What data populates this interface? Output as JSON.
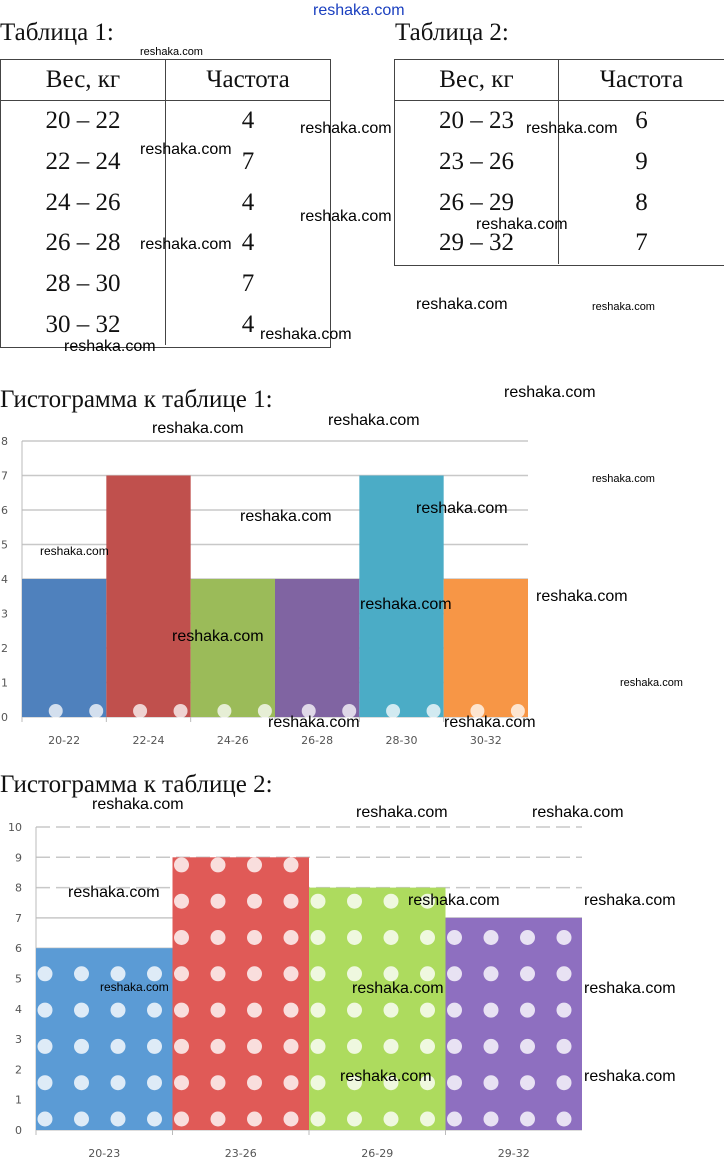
{
  "table1": {
    "title": "Таблица 1:",
    "headers": [
      "Вес, кг",
      "Частота"
    ],
    "rows": [
      [
        "20 – 22",
        "4"
      ],
      [
        "22 – 24",
        "7"
      ],
      [
        "24 – 26",
        "4"
      ],
      [
        "26 – 28",
        "4"
      ],
      [
        "28 – 30",
        "7"
      ],
      [
        "30 – 32",
        "4"
      ]
    ]
  },
  "table2": {
    "title": "Таблица 2:",
    "headers": [
      "Вес, кг",
      "Частота"
    ],
    "rows": [
      [
        "20 – 23",
        "6"
      ],
      [
        "23 – 26",
        "9"
      ],
      [
        "26 – 29",
        "8"
      ],
      [
        "29 – 32",
        "7"
      ]
    ]
  },
  "hist1": {
    "title": "Гистограмма к таблице 1:"
  },
  "hist2": {
    "title": "Гистограмма к таблице 2:"
  },
  "watermark": "reshaka.com",
  "chart_data": [
    {
      "type": "bar",
      "title": "Гистограмма к таблице 1:",
      "categories": [
        "20-22",
        "22-24",
        "24-26",
        "26-28",
        "28-30",
        "30-32"
      ],
      "values": [
        4,
        7,
        4,
        4,
        7,
        4
      ],
      "colors": [
        "#4f81bd",
        "#c0504d",
        "#9bbb59",
        "#8064a2",
        "#4bacc6",
        "#f79646"
      ],
      "yticks": [
        "0",
        "1",
        "2",
        "3",
        "4",
        "5",
        "6",
        "7",
        "8"
      ],
      "ylim": [
        0,
        8
      ],
      "xlabel": "",
      "ylabel": "",
      "grid": true
    },
    {
      "type": "bar",
      "title": "Гистограмма к таблице 2:",
      "categories": [
        "20-23",
        "23-26",
        "26-29",
        "29-32"
      ],
      "values": [
        6,
        9,
        8,
        7
      ],
      "colors": [
        "#5b9bd5",
        "#e05a57",
        "#addb5e",
        "#8e6fc0"
      ],
      "yticks": [
        "0",
        "1",
        "2",
        "3",
        "4",
        "5",
        "6",
        "7",
        "8",
        "9",
        "10"
      ],
      "ylim": [
        0,
        10
      ],
      "xlabel": "",
      "ylabel": "",
      "grid": true
    }
  ]
}
